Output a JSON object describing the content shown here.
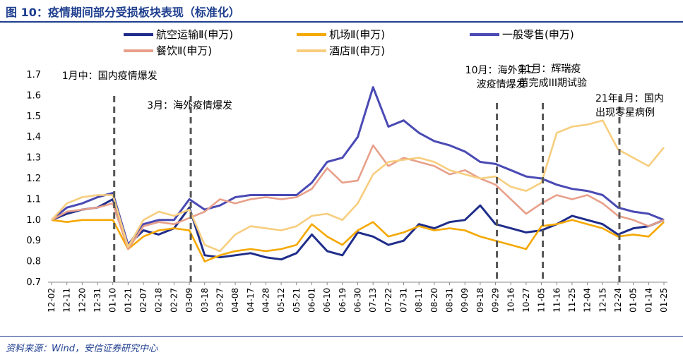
{
  "figure": {
    "title": "图 10：疫情期间部分受损板块表现（标准化）",
    "source": "资料来源：Wind，安信证券研究中心"
  },
  "colors": {
    "title": "#1F3F8F",
    "airline": "#1F2D8A",
    "airport": "#F5A800",
    "retail": "#4A4AB4",
    "catering": "#E8A08A",
    "hotel": "#F7CE7E",
    "event_line": "#555555"
  },
  "chart_data": {
    "type": "line",
    "ylim": [
      0.7,
      1.7
    ],
    "yticks": [
      0.7,
      0.8,
      0.9,
      1.0,
      1.1,
      1.2,
      1.3,
      1.4,
      1.5,
      1.6,
      1.7
    ],
    "ytick_labels": [
      "0.7",
      "0.8",
      "0.9",
      "1.0",
      "1.1",
      "1.2",
      "1.3",
      "1.4",
      "1.5",
      "1.6",
      "1.7"
    ],
    "categories": [
      "12-02",
      "12-11",
      "12-20",
      "12-31",
      "01-10",
      "01-21",
      "02-07",
      "02-18",
      "02-27",
      "03-09",
      "03-18",
      "03-27",
      "04-08",
      "04-17",
      "04-28",
      "05-12",
      "05-21",
      "06-01",
      "06-10",
      "06-19",
      "06-30",
      "07-13",
      "07-22",
      "07-31",
      "08-11",
      "08-20",
      "08-31",
      "09-09",
      "09-18",
      "09-29",
      "10-16",
      "10-27",
      "11-05",
      "11-16",
      "11-25",
      "12-04",
      "12-15",
      "12-24",
      "01-05",
      "01-14",
      "01-25"
    ],
    "series": [
      {
        "name": "航空运输Ⅱ(申万)",
        "color_key": "airline",
        "values": [
          1.0,
          1.03,
          1.05,
          1.06,
          1.1,
          0.88,
          0.95,
          0.93,
          0.96,
          1.06,
          0.83,
          0.82,
          0.83,
          0.84,
          0.82,
          0.81,
          0.84,
          0.93,
          0.85,
          0.83,
          0.94,
          0.92,
          0.88,
          0.9,
          0.98,
          0.96,
          0.99,
          1.0,
          1.07,
          0.98,
          0.96,
          0.94,
          0.95,
          0.98,
          1.02,
          1.0,
          0.98,
          0.93,
          0.96,
          0.97,
          1.0
        ]
      },
      {
        "name": "机场Ⅱ(申万)",
        "color_key": "airport",
        "values": [
          1.0,
          0.99,
          1.0,
          1.0,
          1.0,
          0.86,
          0.92,
          0.95,
          0.96,
          0.95,
          0.8,
          0.83,
          0.85,
          0.86,
          0.85,
          0.86,
          0.88,
          0.98,
          0.92,
          0.88,
          0.95,
          0.99,
          0.92,
          0.94,
          0.97,
          0.95,
          0.96,
          0.95,
          0.92,
          0.9,
          0.88,
          0.86,
          0.97,
          0.98,
          1.0,
          0.98,
          0.96,
          0.92,
          0.93,
          0.92,
          0.99
        ]
      },
      {
        "name": "一般零售(申万)",
        "color_key": "retail",
        "values": [
          1.0,
          1.06,
          1.08,
          1.11,
          1.13,
          0.88,
          0.98,
          1.0,
          1.0,
          1.1,
          1.05,
          1.07,
          1.11,
          1.12,
          1.12,
          1.12,
          1.12,
          1.18,
          1.28,
          1.3,
          1.4,
          1.64,
          1.45,
          1.48,
          1.42,
          1.38,
          1.36,
          1.33,
          1.28,
          1.27,
          1.24,
          1.21,
          1.2,
          1.17,
          1.15,
          1.14,
          1.12,
          1.06,
          1.04,
          1.03,
          1.0
        ]
      },
      {
        "name": "餐饮Ⅱ(申万)",
        "color_key": "catering",
        "values": [
          1.0,
          1.04,
          1.05,
          1.06,
          1.08,
          0.86,
          0.97,
          0.99,
          0.98,
          1.01,
          1.04,
          1.1,
          1.08,
          1.1,
          1.11,
          1.1,
          1.11,
          1.15,
          1.25,
          1.18,
          1.19,
          1.36,
          1.26,
          1.3,
          1.28,
          1.26,
          1.22,
          1.24,
          1.2,
          1.17,
          1.1,
          1.03,
          1.08,
          1.12,
          1.1,
          1.12,
          1.08,
          1.02,
          1.0,
          0.97,
          1.0
        ]
      },
      {
        "name": "酒店Ⅱ(申万)",
        "color_key": "hotel",
        "values": [
          1.0,
          1.08,
          1.11,
          1.12,
          1.12,
          0.87,
          1.0,
          1.04,
          1.02,
          1.05,
          0.88,
          0.85,
          0.93,
          0.97,
          0.96,
          0.95,
          0.97,
          1.02,
          1.03,
          1.0,
          1.08,
          1.22,
          1.28,
          1.29,
          1.3,
          1.28,
          1.24,
          1.22,
          1.2,
          1.21,
          1.16,
          1.14,
          1.18,
          1.42,
          1.45,
          1.46,
          1.48,
          1.34,
          1.3,
          1.26,
          1.35
        ]
      }
    ],
    "event_lines": [
      {
        "at": "01-10",
        "label": [
          "1月中：国内疫情爆发"
        ]
      },
      {
        "at": "03-09",
        "label": [
          "3月：海外疫情爆发"
        ]
      },
      {
        "at": "09-29",
        "label": [
          "10月：海外第二",
          "波疫情爆发"
        ]
      },
      {
        "at": "11-05",
        "label": [
          "11月：辉瑞疫",
          "苗完成III期试验"
        ]
      },
      {
        "at": "12-24",
        "label": [
          "21年1月：国内",
          "出现零星病例"
        ]
      }
    ]
  }
}
